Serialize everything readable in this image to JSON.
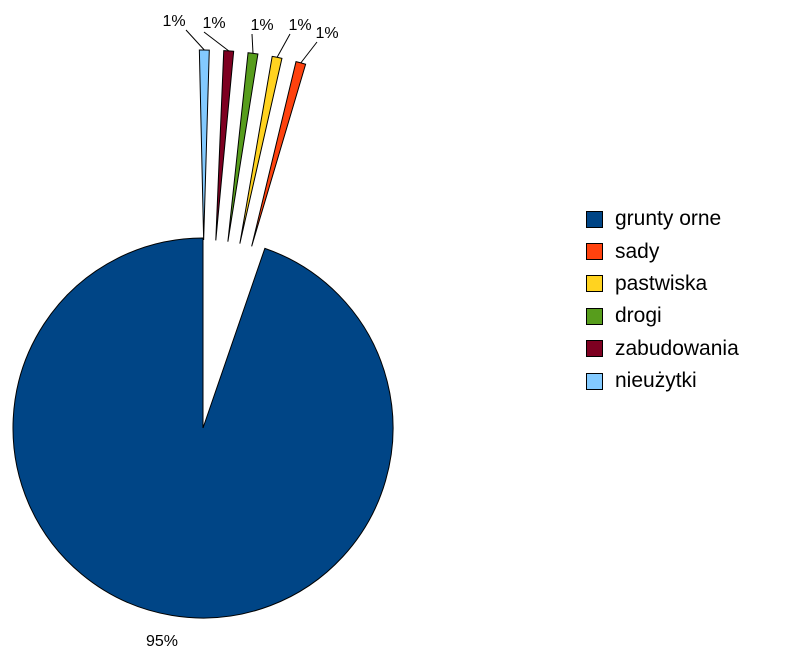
{
  "chart_data": {
    "type": "pie",
    "title": "",
    "legend_position": "right",
    "slices": [
      {
        "name": "grunty orne",
        "value": 95,
        "label": "95%",
        "color": "#004586"
      },
      {
        "name": "sady",
        "value": 1,
        "label": "1%",
        "color": "#ff420e"
      },
      {
        "name": "pastwiska",
        "value": 1,
        "label": "1%",
        "color": "#ffd320"
      },
      {
        "name": "drogi",
        "value": 1,
        "label": "1%",
        "color": "#579d1c"
      },
      {
        "name": "zabudowania",
        "value": 1,
        "label": "1%",
        "color": "#7e0021"
      },
      {
        "name": "nieużytki",
        "value": 1,
        "label": "1%",
        "color": "#83caff"
      }
    ]
  }
}
